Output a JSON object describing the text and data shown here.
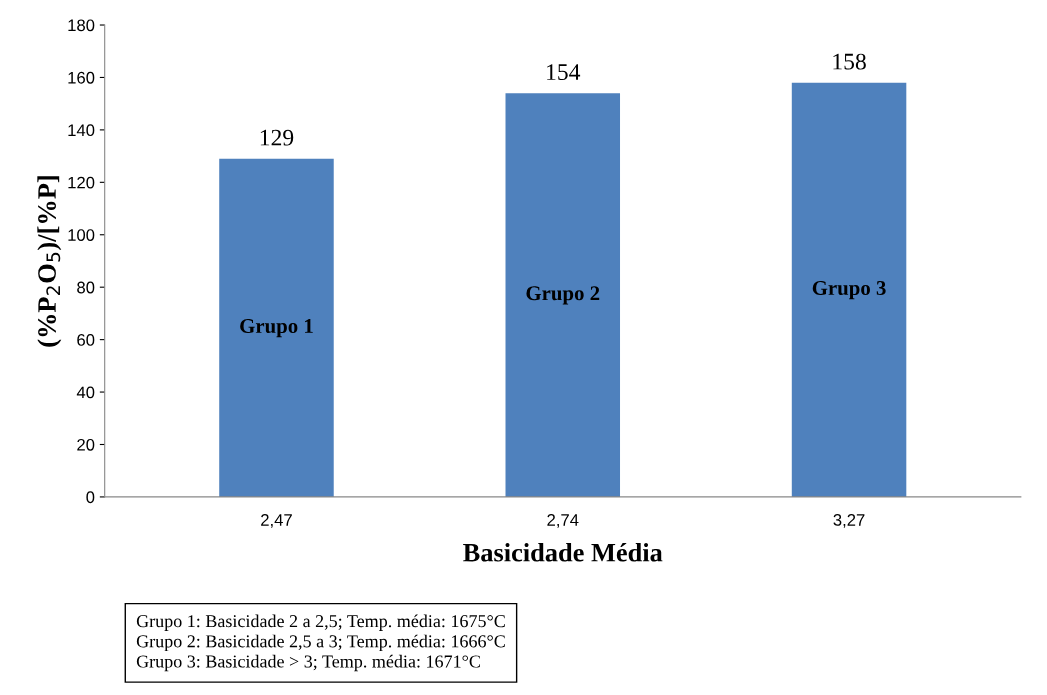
{
  "chart_data": {
    "type": "bar",
    "categories": [
      "2,47",
      "2,74",
      "3,27"
    ],
    "values": [
      129,
      154,
      158
    ],
    "color": "#4f81bd",
    "data_labels": true,
    "xlabel": "Basicidade Média",
    "ylabel": "(%P$_{2}$O$_{5}$)/[%P]",
    "ylim": [
      0,
      180
    ],
    "yticks": [
      0,
      20,
      40,
      60,
      80,
      100,
      120,
      140,
      160,
      180
    ],
    "grid": false,
    "legend": false,
    "annotations": [
      "Grupo 1",
      "Grupo 2",
      "Grupo 3",
      "Grupo 1: Basicidade 2 a 2,5; Temp. média: 1675°C\nGrupo 2: Basicidade 2,5 a 3; Temp. média: 1666°C\nGrupo 3: Basicidade > 3; Temp. média: 1671°C"
    ]
  }
}
